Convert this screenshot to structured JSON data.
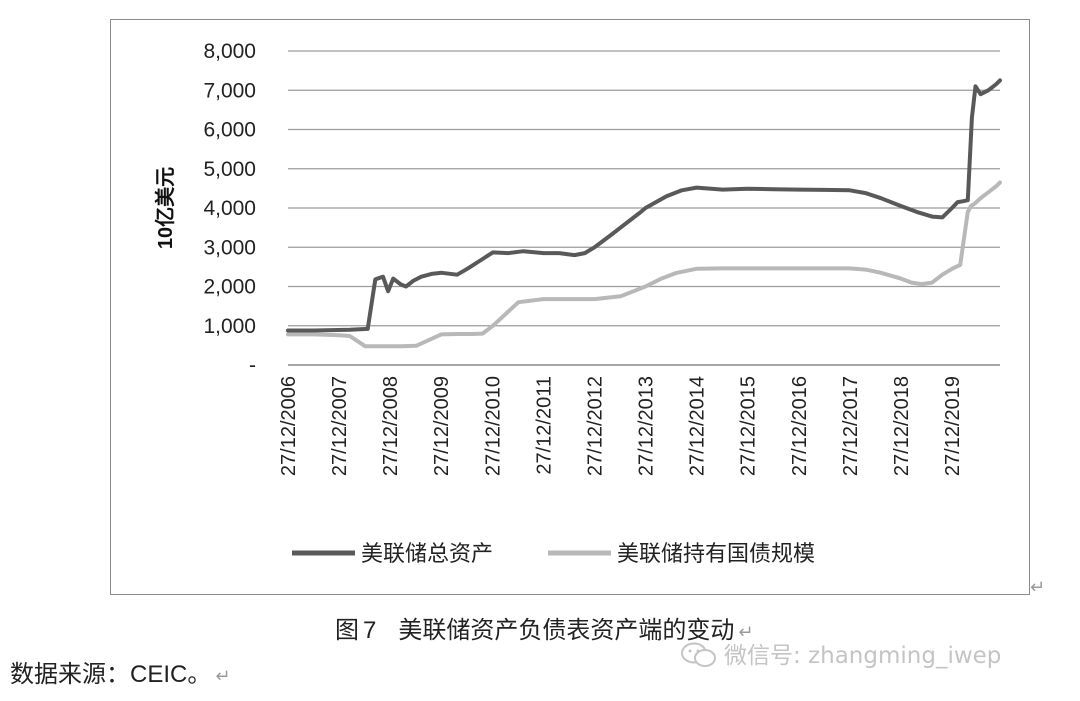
{
  "figure": {
    "caption_prefix": "图",
    "caption_number": "7",
    "caption_text": "美联储资产负债表资产端的变动",
    "source_label": "数据来源：",
    "source_value": "CEIC",
    "source_end": "。",
    "return_mark": "↵",
    "watermark": "微信号: zhangming_iwep"
  },
  "chart_data": {
    "type": "line",
    "ylabel": "10亿美元",
    "ylim": [
      0,
      8000
    ],
    "yticks": [
      0,
      1000,
      2000,
      3000,
      4000,
      5000,
      6000,
      7000,
      8000
    ],
    "ytick_labels": [
      "-",
      "1,000",
      "2,000",
      "3,000",
      "4,000",
      "5,000",
      "6,000",
      "7,000",
      "8,000"
    ],
    "x_tick_labels": [
      "27/12/2006",
      "27/12/2007",
      "27/12/2008",
      "27/12/2009",
      "27/12/2010",
      "27/12/2011",
      "27/12/2012",
      "27/12/2013",
      "27/12/2014",
      "27/12/2015",
      "27/12/2016",
      "27/12/2017",
      "27/12/2018",
      "27/12/2019"
    ],
    "x_tick_years": [
      2006.99,
      2007.99,
      2008.99,
      2009.99,
      2010.99,
      2011.99,
      2012.99,
      2013.99,
      2014.99,
      2015.99,
      2016.99,
      2017.99,
      2018.99,
      2019.99
    ],
    "xlim": [
      2006.99,
      2020.93
    ],
    "grid": "horizontal",
    "legend_position": "bottom",
    "series": [
      {
        "name": "美联储总资产",
        "color": "#595959",
        "x": [
          2006.99,
          2007.5,
          2007.85,
          2008.2,
          2008.55,
          2008.7,
          2008.85,
          2008.95,
          2009.05,
          2009.2,
          2009.3,
          2009.45,
          2009.6,
          2009.8,
          2010.0,
          2010.3,
          2010.5,
          2010.8,
          2011.0,
          2011.3,
          2011.6,
          2011.99,
          2012.3,
          2012.6,
          2012.8,
          2012.99,
          2013.3,
          2013.6,
          2013.9,
          2013.99,
          2014.4,
          2014.7,
          2014.99,
          2015.5,
          2015.99,
          2016.5,
          2016.99,
          2017.5,
          2017.99,
          2018.3,
          2018.6,
          2018.99,
          2019.3,
          2019.6,
          2019.8,
          2019.99,
          2020.1,
          2020.2,
          2020.3,
          2020.38,
          2020.45,
          2020.55,
          2020.7,
          2020.85,
          2020.93
        ],
        "y": [
          880,
          880,
          890,
          900,
          920,
          2180,
          2250,
          1880,
          2200,
          2050,
          2000,
          2150,
          2250,
          2320,
          2350,
          2300,
          2450,
          2700,
          2870,
          2850,
          2900,
          2850,
          2850,
          2800,
          2850,
          3000,
          3300,
          3600,
          3900,
          4000,
          4300,
          4450,
          4520,
          4470,
          4490,
          4480,
          4470,
          4460,
          4450,
          4380,
          4250,
          4050,
          3900,
          3780,
          3760,
          4000,
          4150,
          4170,
          4200,
          6300,
          7100,
          6900,
          7000,
          7150,
          7250
        ]
      },
      {
        "name": "美联储持有国债规模",
        "color": "#b8b8b8",
        "x": [
          2006.99,
          2007.5,
          2008.0,
          2008.2,
          2008.5,
          2008.99,
          2009.2,
          2009.5,
          2009.99,
          2010.3,
          2010.6,
          2010.8,
          2011.0,
          2011.5,
          2011.99,
          2012.5,
          2012.99,
          2013.5,
          2013.99,
          2014.3,
          2014.6,
          2014.99,
          2015.5,
          2015.99,
          2016.99,
          2017.5,
          2017.99,
          2018.3,
          2018.6,
          2018.99,
          2019.2,
          2019.4,
          2019.6,
          2019.8,
          2019.99,
          2020.15,
          2020.3,
          2020.36,
          2020.42,
          2020.55,
          2020.7,
          2020.85,
          2020.93
        ],
        "y": [
          780,
          780,
          760,
          740,
          480,
          480,
          480,
          490,
          780,
          790,
          790,
          800,
          1000,
          1600,
          1680,
          1680,
          1680,
          1750,
          2000,
          2200,
          2350,
          2450,
          2460,
          2460,
          2460,
          2460,
          2460,
          2430,
          2350,
          2200,
          2100,
          2060,
          2100,
          2300,
          2450,
          2550,
          3900,
          4050,
          4100,
          4250,
          4400,
          4550,
          4650
        ]
      }
    ]
  }
}
